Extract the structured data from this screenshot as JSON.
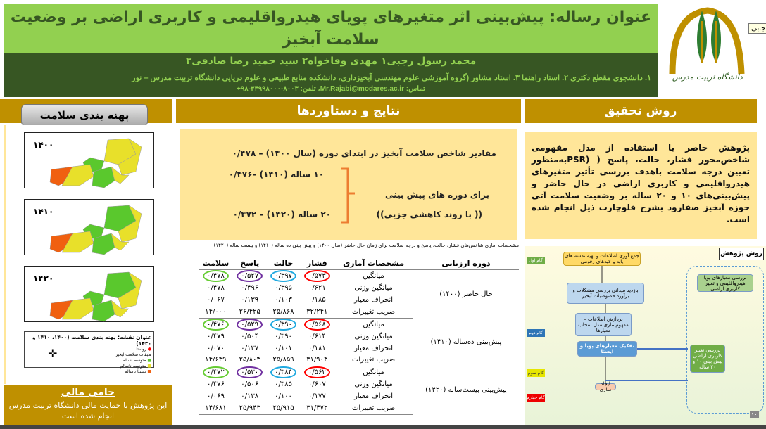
{
  "header": {
    "title": "عنوان رساله: پیش‌بینی اثر متغیرهای پویای هیدرواقلیمی و کاربری اراضی بر وضعیت سلامت آبخیز",
    "authors": "محمد رسول رجبی۱ مهدی وفاخواه۲ سید حمید رضا صادقی۳",
    "affiliation": "۱. دانشجوی مقطع دکتری ۲. استاد راهنما ۳. استاد مشاور (گروه آموزشی علوم مهندسی آبخیزداری، دانشکده منابع طبیعی و علوم دریایی  دانشگاه تربیت مدرس – نور",
    "contact": "تماس: Mr.Rajabi@modares.ac.ir، تلفن: ۸۰۰۳-۴۴۹۹۸۰۰۰-۹۸+",
    "logo_text": "دانشگاه تربیت مدرس",
    "tooltip": "جابی"
  },
  "colors": {
    "light_green": "#92d050",
    "dark_green": "#375623",
    "gold": "#bf9000",
    "pale_yellow": "#ffe699"
  },
  "left": {
    "button": "پهنه بندی سلامت",
    "maps": [
      {
        "year": "۱۴۰۰"
      },
      {
        "year": "۱۴۱۰"
      },
      {
        "year": "۱۴۲۰"
      }
    ],
    "legend_title": "عنوان نقشه: پهنه بندی سلامت (۱۴۰۰، ۱۴۱۰ و ۱۴۲۰)",
    "legend_items": [
      "روستا",
      "طبقات سلامت آبخیز",
      "متوسط سالم",
      "متوسط ناسالم",
      "نسبتاً ناسالم"
    ],
    "sponsor_title": "حامی مالی",
    "sponsor_text": "این پژوهش با حمایت مالی دانشگاه تربیت مدرس انجام شده است"
  },
  "results": {
    "title": "نتایج و دستاوردها",
    "line1": "مقادیر شاخص سلامت آبخیز در ابتدای دوره (سال ۱۴۰۰) – ۰/۴۷۸",
    "line10": "۱۰ ساله (۱۴۱۰) –۰/۴۷۶",
    "line20": "۲۰ ساله (۱۴۲۰) – ۰/۴۷۲",
    "forecast": "برای دوره های پیش بینی",
    "trend": "(( با روند کاهشی جزیی))",
    "table_caption": "مشخصات آماری شاخص‌های فشار، حالت، پاسخ و درجه سلامت برای زمان حال حاضر (سال ۱۴۰۰) و پیش بینی ده ساله (۱۴۱۰) و بیست ساله (۱۴۲۰)",
    "headers": [
      "دوره ارزیابی",
      "مشخصات آماری",
      "فشار",
      "حالت",
      "پاسخ",
      "سلامت"
    ],
    "groups": [
      {
        "period": "حال حاضر (۱۴۰۰)",
        "rows": [
          [
            "میانگین",
            "۰/۵۷۳",
            "۰/۳۹۷",
            "۰/۵۲۷",
            "۰/۴۷۸"
          ],
          [
            "میانگین وزنی",
            "۰/۶۲۱",
            "۰/۳۹۵",
            "۰/۴۹۶",
            "۰/۴۷۸"
          ],
          [
            "انحراف معیار",
            "۰/۱۸۵",
            "۰/۱۰۳",
            "۰/۱۳۹",
            "۰/۰۶۷"
          ],
          [
            "ضریب تغییرات",
            "۳۲/۲۴۱",
            "۲۵/۸۶۸",
            "۲۶/۴۲۵",
            "۱۴/۰۰۰"
          ]
        ]
      },
      {
        "period": "پیش‌بینی ده‌ساله (۱۴۱۰)",
        "rows": [
          [
            "میانگین",
            "۰/۵۶۸",
            "۰/۳۹۰",
            "۰/۵۲۹",
            "۰/۴۷۶"
          ],
          [
            "میانگین وزنی",
            "۰/۶۱۴",
            "۰/۳۹۰",
            "۰/۵۰۴",
            "۰/۴۷۹"
          ],
          [
            "انحراف معیار",
            "۰/۱۸۱",
            "۰/۱۰۱",
            "۰/۱۳۷",
            "۰/۰۷۰"
          ],
          [
            "ضریب تغییرات",
            "۳۱/۹۰۴",
            "۲۵/۸۵۹",
            "۲۵/۸۰۳",
            "۱۴/۶۳۹"
          ]
        ]
      },
      {
        "period": "پیش‌بینی بیست‌ساله (۱۴۲۰)",
        "rows": [
          [
            "میانگین",
            "۰/۵۶۲",
            "۰/۳۸۴",
            "۰/۵۳۰",
            "۰/۴۷۲"
          ],
          [
            "میانگین وزنی",
            "۰/۶۰۷",
            "۰/۳۸۵",
            "۰/۵۰۶",
            "۰/۴۷۶"
          ],
          [
            "انحراف معیار",
            "۰/۱۷۷",
            "۰/۱۰۰",
            "۰/۱۳۸",
            "۰/۰۶۹"
          ],
          [
            "ضریب تغییرات",
            "۳۱/۴۷۲",
            "۲۵/۹۱۵",
            "۲۵/۹۴۳",
            "۱۴/۶۸۱"
          ]
        ]
      }
    ],
    "circle_colors": [
      "#ff0000",
      "#1fa9e0",
      "#7030a0",
      "#66cc33"
    ]
  },
  "method": {
    "title": "روش تحقیق",
    "text": "پژوهش حاضر با استفاده از مدل مفهومی شاخص‌محور فشار، حالت، پاسخ ( (PSRبه‌منظور تعیین درجه سلامت باهدف بررسی تأثیر متغیرهای هیدرواقلیمی و کاربری اراضی در حال حاضر و پیش‌بینی‌های ۱۰ و ۲۰ ساله بر وضعیت سلامت آتی حوزه آبخیز صفارود بشرح فلوچارت ذیل انجام شده است.",
    "flow": {
      "title": "روش پژوهش",
      "steps": [
        "گام اول",
        "گام دوم",
        "گام سوم",
        "گام چهارم"
      ],
      "box1": "جمع آوری اطلاعات و تهیه نقشه های پایه و لایه‌های رقومی",
      "box2": "بازدید میدانی بررسی مشکلات و برآورد خصوصیات آبخیز",
      "box3": "پردازش اطلاعات – مفهوم‌سازی مدل انتخاب معیارها",
      "box4": "تفکیک معیارهای پویا و ایستا",
      "box5": "بررسی تغییر کاربری اراضی پیش بینی ۱۰ و ۲۰ ساله",
      "box6": "بررسی معیارهای پویا هیدرواقلیمی و تغییر کاربری اراضی",
      "box7": "ایجاد سازی",
      "page": "۱۰"
    }
  }
}
